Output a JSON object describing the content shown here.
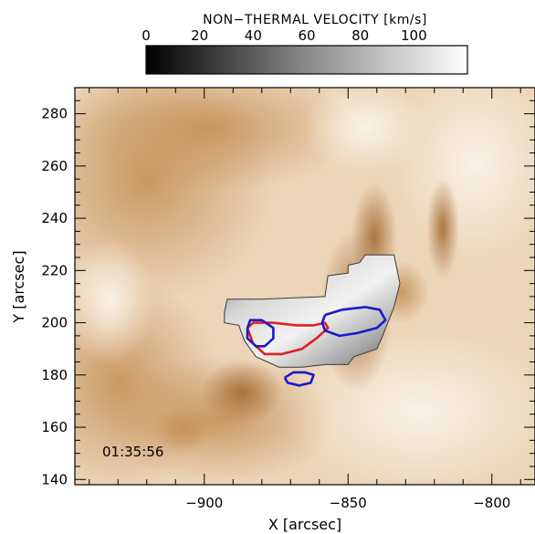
{
  "chart_data": {
    "type": "heatmap",
    "colorbar": {
      "title": "NON−THERMAL VELOCITY [km/s]",
      "ticks": [
        "0",
        "20",
        "40",
        "60",
        "80",
        "100"
      ],
      "range": [
        0,
        120
      ],
      "colormap": "grayscale (black to white)"
    },
    "xlabel": "X [arcsec]",
    "ylabel": "Y [arcsec]",
    "xlim": [
      -945,
      -785
    ],
    "ylim": [
      138,
      290
    ],
    "xticks": [
      "−900",
      "−850",
      "−800"
    ],
    "yticks": [
      "140",
      "160",
      "180",
      "200",
      "220",
      "240",
      "260",
      "280"
    ],
    "background_image": "EUV coronal image, sepia (brown) colormap",
    "overlay_region_outline": [
      [
        -893,
        204
      ],
      [
        -892,
        209
      ],
      [
        -880,
        209
      ],
      [
        -858,
        210
      ],
      [
        -857,
        218
      ],
      [
        -850,
        219
      ],
      [
        -850,
        222
      ],
      [
        -846,
        223
      ],
      [
        -844,
        226
      ],
      [
        -834,
        226
      ],
      [
        -832,
        215
      ],
      [
        -834,
        206
      ],
      [
        -838,
        195
      ],
      [
        -840,
        190
      ],
      [
        -848,
        187
      ],
      [
        -850,
        184
      ],
      [
        -858,
        184
      ],
      [
        -866,
        183
      ],
      [
        -874,
        183
      ],
      [
        -878,
        185
      ],
      [
        -882,
        187
      ],
      [
        -886,
        193
      ],
      [
        -888,
        199
      ],
      [
        -893,
        200
      ]
    ],
    "contours": [
      {
        "color": "#e02020",
        "points": [
          [
            -885,
            198
          ],
          [
            -883,
            200
          ],
          [
            -876,
            200
          ],
          [
            -868,
            199
          ],
          [
            -862,
            199
          ],
          [
            -858,
            200
          ],
          [
            -857,
            198
          ],
          [
            -861,
            194
          ],
          [
            -866,
            190
          ],
          [
            -873,
            188
          ],
          [
            -879,
            188
          ],
          [
            -883,
            192
          ],
          [
            -885,
            198
          ]
        ]
      },
      {
        "color": "#1a1acc",
        "points": [
          [
            -885,
            198
          ],
          [
            -884,
            201
          ],
          [
            -880,
            201
          ],
          [
            -876,
            198
          ],
          [
            -876,
            194
          ],
          [
            -879,
            191
          ],
          [
            -882,
            191
          ],
          [
            -885,
            194
          ],
          [
            -885,
            198
          ]
        ]
      },
      {
        "color": "#1a1acc",
        "points": [
          [
            -858,
            203
          ],
          [
            -852,
            205
          ],
          [
            -844,
            206
          ],
          [
            -839,
            205
          ],
          [
            -837,
            201
          ],
          [
            -840,
            198
          ],
          [
            -847,
            196
          ],
          [
            -853,
            195
          ],
          [
            -858,
            197
          ],
          [
            -859,
            200
          ],
          [
            -858,
            203
          ]
        ]
      },
      {
        "color": "#1a1acc",
        "points": [
          [
            -872,
            179
          ],
          [
            -869,
            181
          ],
          [
            -865,
            181
          ],
          [
            -862,
            180
          ],
          [
            -863,
            177
          ],
          [
            -867,
            176
          ],
          [
            -871,
            177
          ],
          [
            -872,
            179
          ]
        ]
      }
    ],
    "annotation": "01:35:56"
  }
}
